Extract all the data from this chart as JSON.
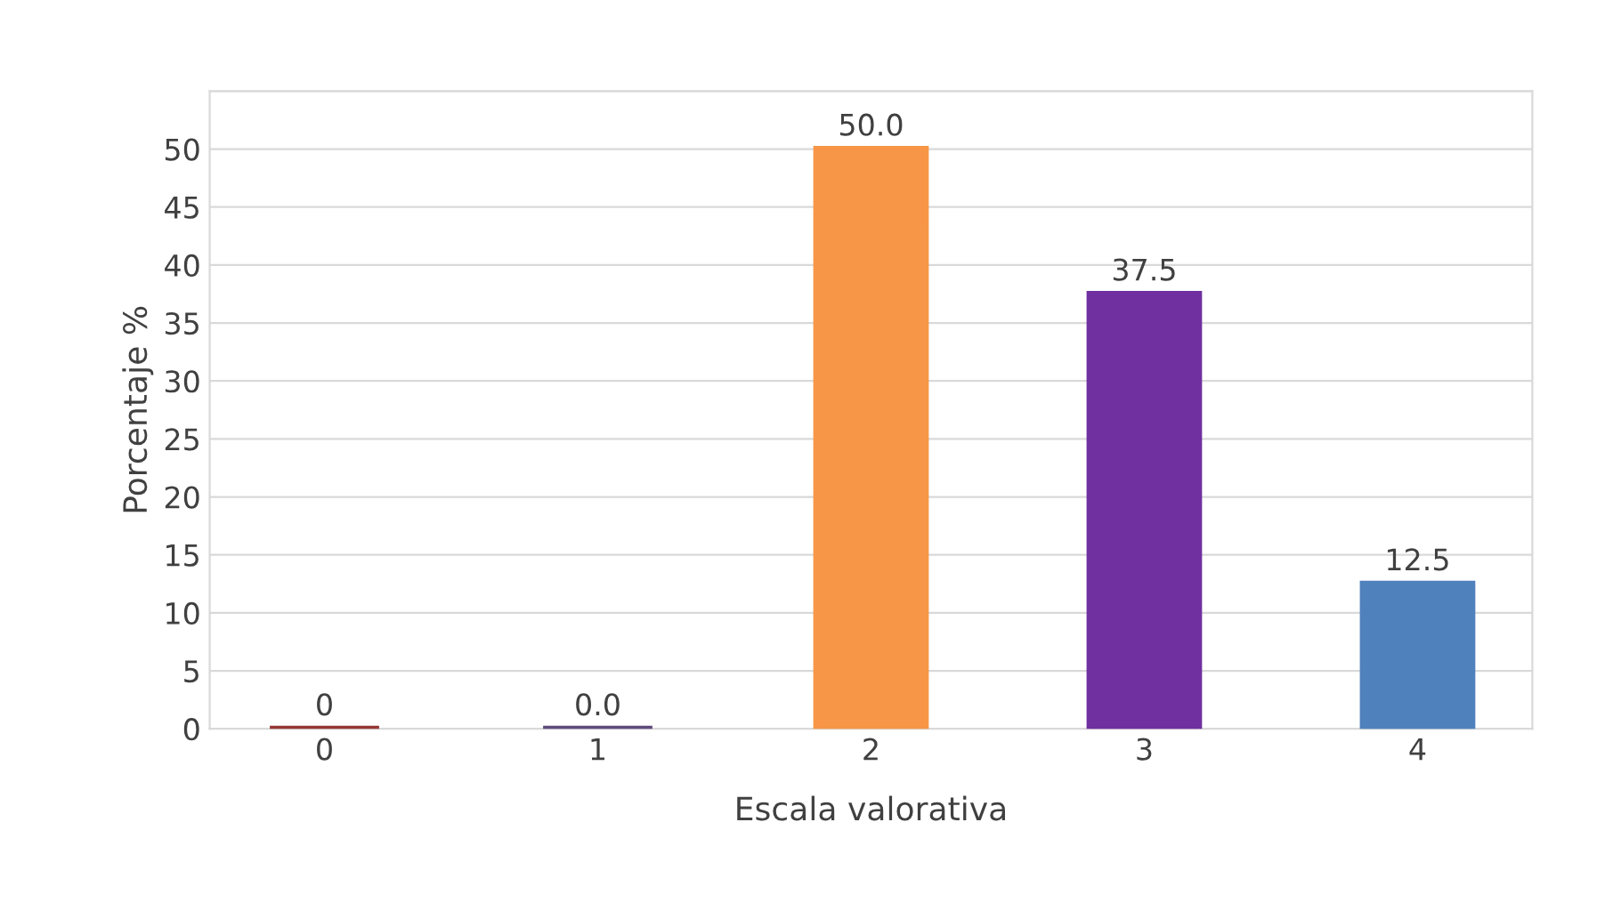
{
  "chart_data": {
    "type": "bar",
    "xlabel": "Escala valorativa",
    "ylabel": "Porcentaje %",
    "categories": [
      "0",
      "1",
      "2",
      "3",
      "4"
    ],
    "values": [
      0,
      0,
      50.0,
      37.5,
      12.5
    ],
    "value_labels": [
      "0",
      "0.0",
      "50.0",
      "37.5",
      "12.5"
    ],
    "colors": [
      "#953735",
      "#604a7b",
      "#f79646",
      "#7030a0",
      "#4f81bd"
    ],
    "ylim": [
      0,
      55
    ],
    "yticks": [
      0,
      5,
      10,
      15,
      20,
      25,
      30,
      35,
      40,
      45,
      50,
      {
        "value": 55,
        "label": null
      }
    ],
    "grid": "y"
  }
}
